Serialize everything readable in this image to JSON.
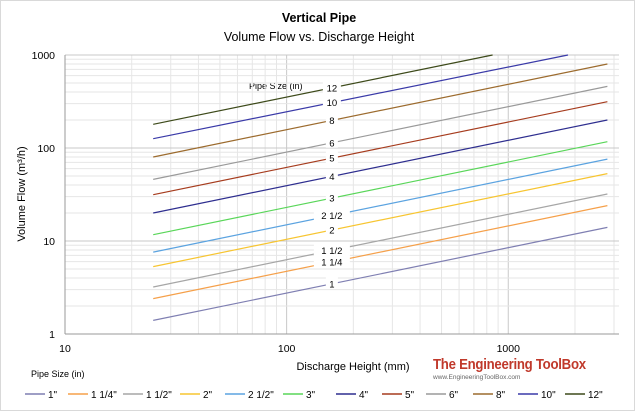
{
  "chart_data": {
    "type": "line",
    "title": "Vertical  Pipe",
    "subtitle": "Volume  Flow  vs.  Discharge Height",
    "xlabel": "Discharge Height (mm)",
    "ylabel": "Volume Flow (m³/h)",
    "xscale": "log",
    "yscale": "log",
    "xlim": [
      10,
      3000
    ],
    "ylim": [
      1,
      1000
    ],
    "x_ticks": [
      "10",
      "100",
      "1000"
    ],
    "y_ticks": [
      "1",
      "10",
      "100",
      "1000"
    ],
    "grid": true,
    "legend_title": "Pipe Size (in)",
    "legend_position": "bottom",
    "annotation_title": "Pipe Size (in)",
    "series": [
      {
        "name": "1\"",
        "label": "1",
        "color": "#7f7fb2",
        "x": [
          25,
          2800
        ],
        "y": [
          1.4,
          14
        ]
      },
      {
        "name": "1 1/4\"",
        "label": "1 1/4",
        "color": "#f5a04a",
        "x": [
          25,
          2800
        ],
        "y": [
          2.4,
          24
        ]
      },
      {
        "name": "1 1/2\"",
        "label": "1 1/2",
        "color": "#a6a6a6",
        "x": [
          25,
          2800
        ],
        "y": [
          3.2,
          32
        ]
      },
      {
        "name": "2\"",
        "label": "2",
        "color": "#f7c531",
        "x": [
          25,
          2800
        ],
        "y": [
          5.3,
          53
        ]
      },
      {
        "name": "2 1/2\"",
        "label": "2 1/2",
        "color": "#5ba3e0",
        "x": [
          25,
          2800
        ],
        "y": [
          7.6,
          76
        ]
      },
      {
        "name": "3\"",
        "label": "3",
        "color": "#59d659",
        "x": [
          25,
          2800
        ],
        "y": [
          11.7,
          117
        ]
      },
      {
        "name": "4\"",
        "label": "4",
        "color": "#2e2e8f",
        "x": [
          25,
          2800
        ],
        "y": [
          20,
          200
        ]
      },
      {
        "name": "5\"",
        "label": "5",
        "color": "#a63c1e",
        "x": [
          25,
          2800
        ],
        "y": [
          31.5,
          315
        ]
      },
      {
        "name": "6\"",
        "label": "6",
        "color": "#9a9a9a",
        "x": [
          25,
          2800
        ],
        "y": [
          46,
          460
        ]
      },
      {
        "name": "8\"",
        "label": "8",
        "color": "#9c6b2e",
        "x": [
          25,
          2800
        ],
        "y": [
          80,
          800
        ]
      },
      {
        "name": "10\"",
        "label": "10",
        "color": "#3a3aa8",
        "x": [
          25,
          1860
        ],
        "y": [
          126,
          1000
        ]
      },
      {
        "name": "12\"",
        "label": "12",
        "color": "#3d4a1a",
        "x": [
          25,
          850
        ],
        "y": [
          180,
          1000
        ]
      }
    ]
  },
  "brand": {
    "title": "The Engineering ToolBox",
    "url": "www.EngineeringToolBox.com"
  }
}
